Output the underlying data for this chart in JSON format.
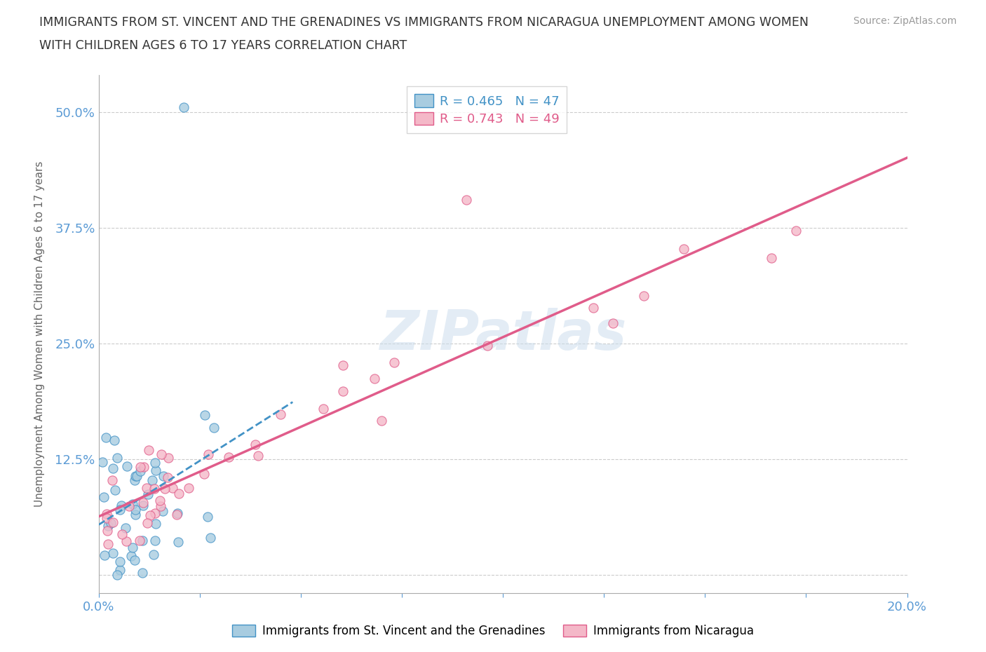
{
  "title_line1": "IMMIGRANTS FROM ST. VINCENT AND THE GRENADINES VS IMMIGRANTS FROM NICARAGUA UNEMPLOYMENT AMONG WOMEN",
  "title_line2": "WITH CHILDREN AGES 6 TO 17 YEARS CORRELATION CHART",
  "source": "Source: ZipAtlas.com",
  "ylabel": "Unemployment Among Women with Children Ages 6 to 17 years",
  "xlim": [
    0.0,
    0.2
  ],
  "ylim": [
    -0.02,
    0.54
  ],
  "watermark": "ZIPatlas",
  "blue_color": "#a8cce0",
  "pink_color": "#f4b8c8",
  "blue_line_color": "#4292c6",
  "pink_line_color": "#e05c8a",
  "blue_R": 0.465,
  "blue_N": 47,
  "pink_R": 0.743,
  "pink_N": 49,
  "legend_label_blue": "Immigrants from St. Vincent and the Grenadines",
  "legend_label_pink": "Immigrants from Nicaragua",
  "background_color": "#ffffff",
  "grid_color": "#cccccc",
  "tick_color": "#5b9bd5",
  "axis_color": "#aaaaaa"
}
